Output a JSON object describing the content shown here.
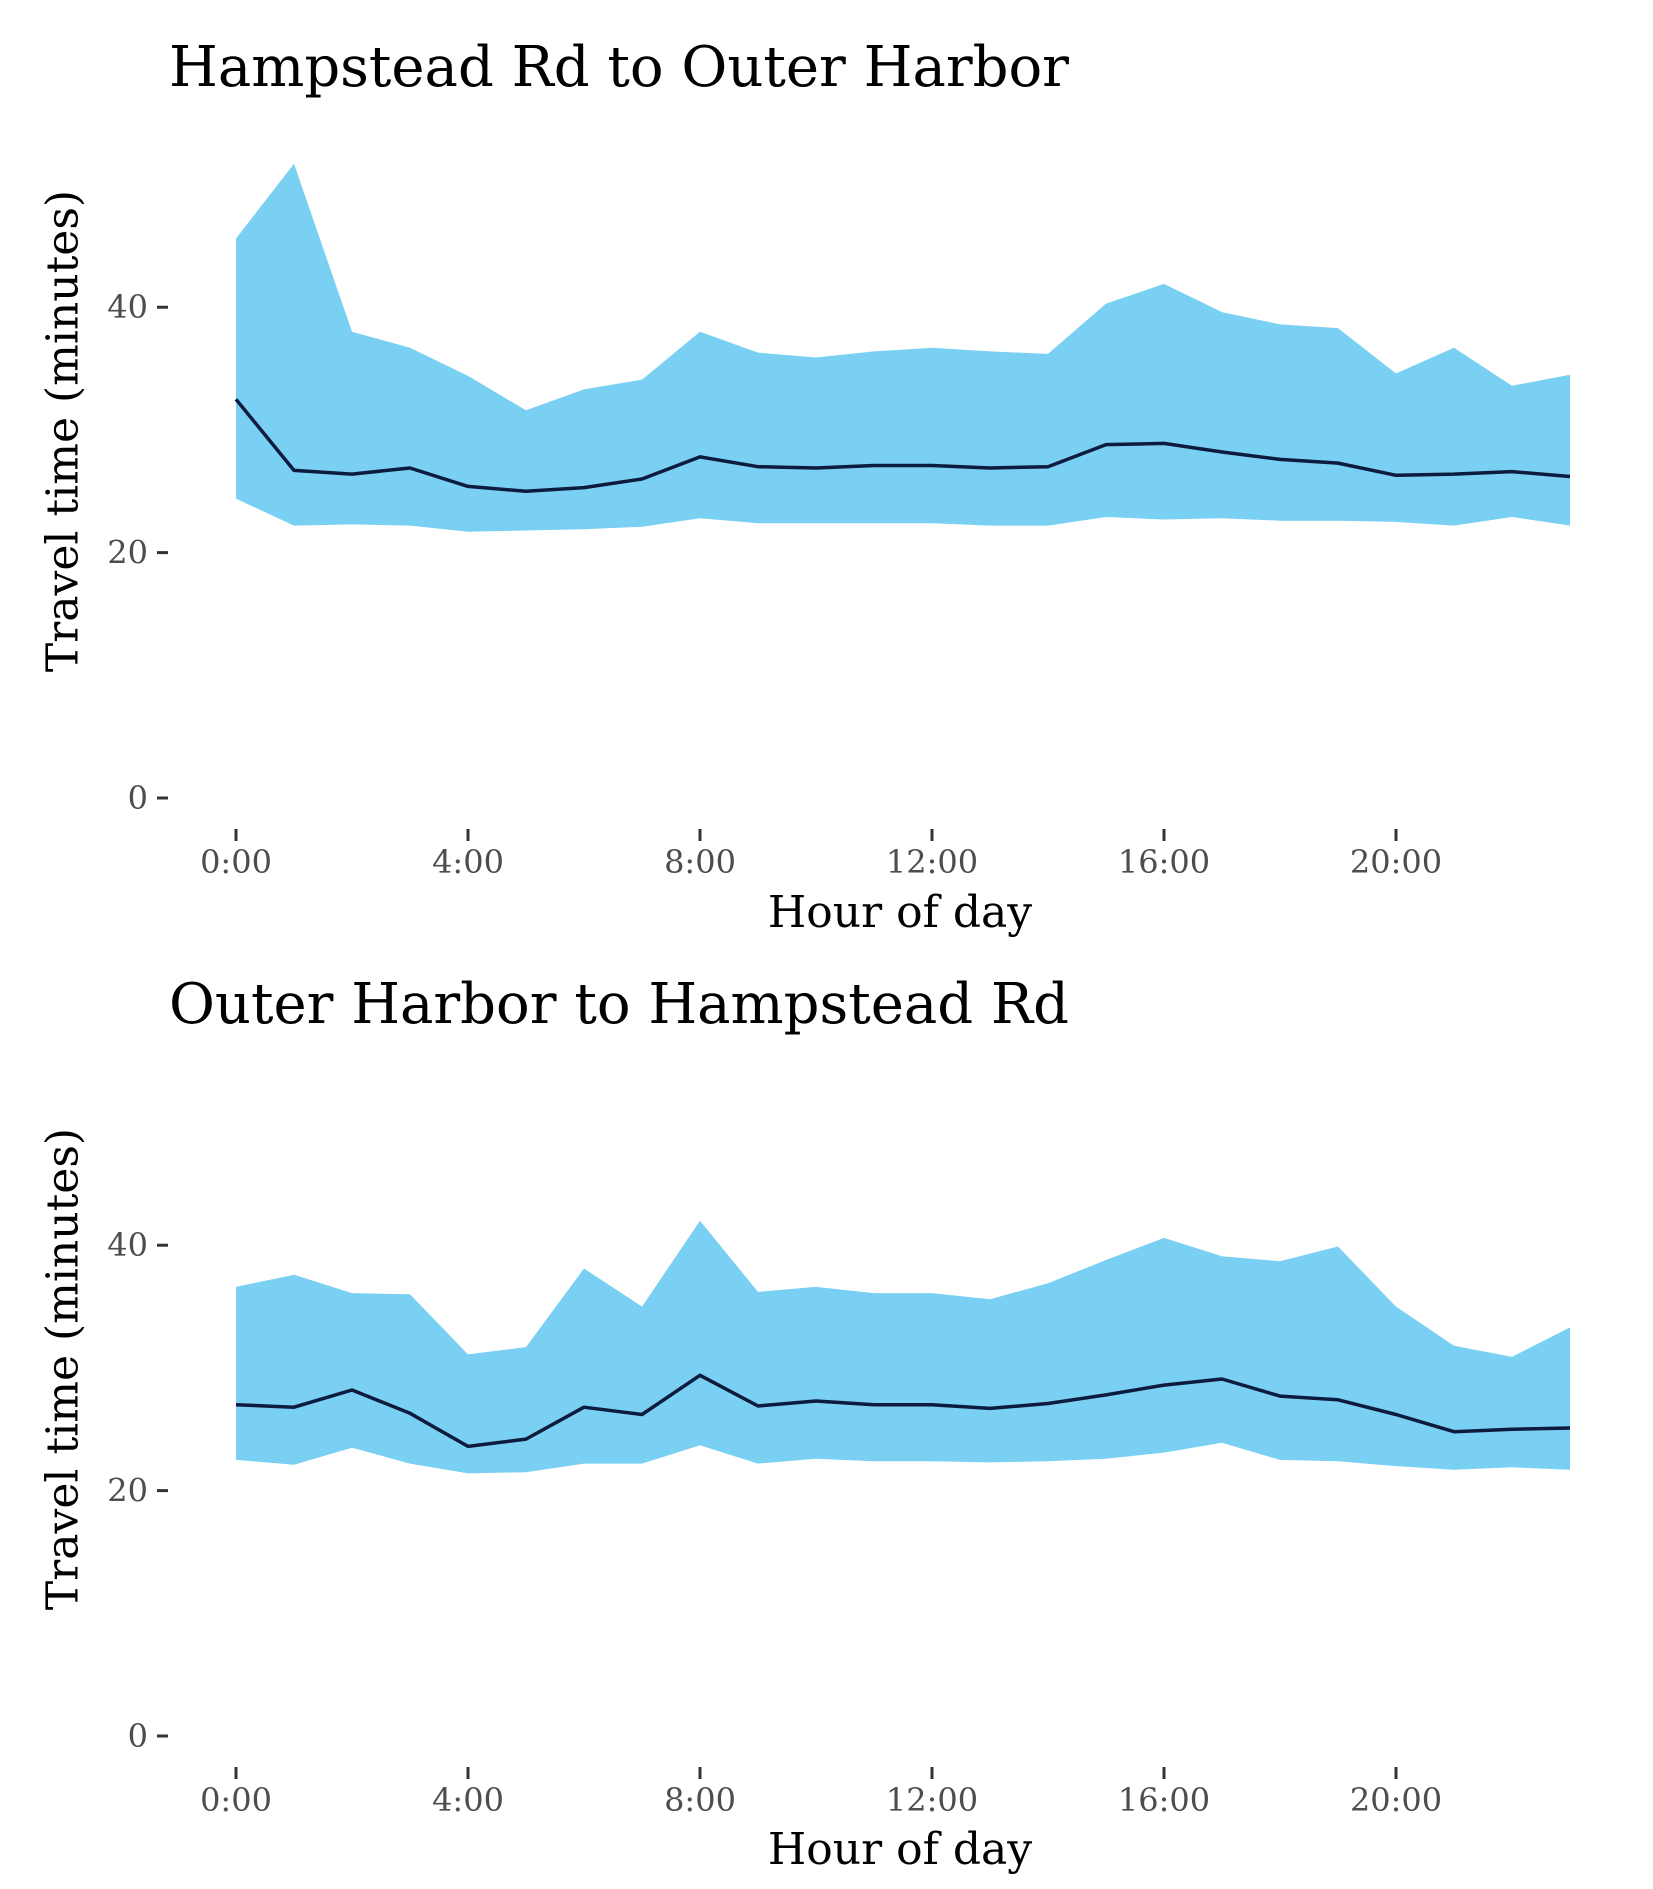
{
  "colors": {
    "band": "#79d0f3",
    "line": "#0d1b3e",
    "tick": "#333333",
    "tick_label": "#4d4d4d"
  },
  "x_tick_labels": [
    "0:00",
    "4:00",
    "8:00",
    "12:00",
    "16:00",
    "20:00"
  ],
  "y_tick_labels": [
    "0",
    "20",
    "40"
  ],
  "chart_data": [
    {
      "type": "area",
      "title": "Hampstead Rd to Outer Harbor",
      "xlabel": "Hour of day",
      "ylabel": "Travel time (minutes)",
      "xlim": [
        0,
        23
      ],
      "ylim": [
        0,
        52
      ],
      "x_ticks": [
        0,
        4,
        8,
        12,
        16,
        20
      ],
      "y_ticks": [
        0,
        20,
        40
      ],
      "grid": false,
      "x": [
        0,
        1,
        2,
        3,
        4,
        5,
        6,
        7,
        8,
        9,
        10,
        11,
        12,
        13,
        14,
        15,
        16,
        17,
        18,
        19,
        20,
        21,
        22,
        23
      ],
      "series": [
        {
          "role": "lower",
          "values": [
            24.4,
            22.2,
            22.3,
            22.2,
            21.7,
            21.8,
            21.9,
            22.1,
            22.8,
            22.4,
            22.4,
            22.4,
            22.4,
            22.2,
            22.2,
            22.9,
            22.7,
            22.8,
            22.6,
            22.6,
            22.5,
            22.2,
            22.9,
            22.2
          ]
        },
        {
          "role": "upper",
          "values": [
            45.6,
            51.7,
            38.0,
            36.7,
            34.4,
            31.6,
            33.3,
            34.1,
            38.0,
            36.3,
            35.9,
            36.4,
            36.7,
            36.4,
            36.2,
            40.3,
            41.9,
            39.6,
            38.6,
            38.3,
            34.6,
            36.7,
            33.6,
            34.5
          ]
        },
        {
          "role": "median",
          "values": [
            32.5,
            26.7,
            26.4,
            26.9,
            25.4,
            25.0,
            25.3,
            26.0,
            27.8,
            27.0,
            26.9,
            27.1,
            27.1,
            26.9,
            27.0,
            28.8,
            28.9,
            28.2,
            27.6,
            27.3,
            26.3,
            26.4,
            26.6,
            26.2
          ]
        }
      ]
    },
    {
      "type": "area",
      "title": "Outer Harbor to Hampstead Rd",
      "xlabel": "Hour of day",
      "ylabel": "Travel time (minutes)",
      "xlim": [
        0,
        23
      ],
      "ylim": [
        0,
        52
      ],
      "x_ticks": [
        0,
        4,
        8,
        12,
        16,
        20
      ],
      "y_ticks": [
        0,
        20,
        40
      ],
      "grid": false,
      "x": [
        0,
        1,
        2,
        3,
        4,
        5,
        6,
        7,
        8,
        9,
        10,
        11,
        12,
        13,
        14,
        15,
        16,
        17,
        18,
        19,
        20,
        21,
        22,
        23
      ],
      "series": [
        {
          "role": "lower",
          "values": [
            22.5,
            22.1,
            23.5,
            22.2,
            21.4,
            21.5,
            22.2,
            22.2,
            23.7,
            22.2,
            22.6,
            22.4,
            22.4,
            22.3,
            22.4,
            22.6,
            23.1,
            23.9,
            22.5,
            22.4,
            22.0,
            21.7,
            21.9,
            21.7
          ]
        },
        {
          "role": "upper",
          "values": [
            36.6,
            37.6,
            36.1,
            36.0,
            31.1,
            31.7,
            38.1,
            35.0,
            42.0,
            36.2,
            36.6,
            36.1,
            36.1,
            35.6,
            36.9,
            38.8,
            40.6,
            39.1,
            38.7,
            39.9,
            35.0,
            31.8,
            30.9,
            33.3
          ]
        },
        {
          "role": "median",
          "values": [
            27.0,
            26.8,
            28.2,
            26.3,
            23.6,
            24.2,
            26.8,
            26.2,
            29.4,
            26.9,
            27.3,
            27.0,
            27.0,
            26.7,
            27.1,
            27.8,
            28.6,
            29.1,
            27.7,
            27.4,
            26.2,
            24.8,
            25.0,
            25.1
          ]
        }
      ]
    }
  ]
}
